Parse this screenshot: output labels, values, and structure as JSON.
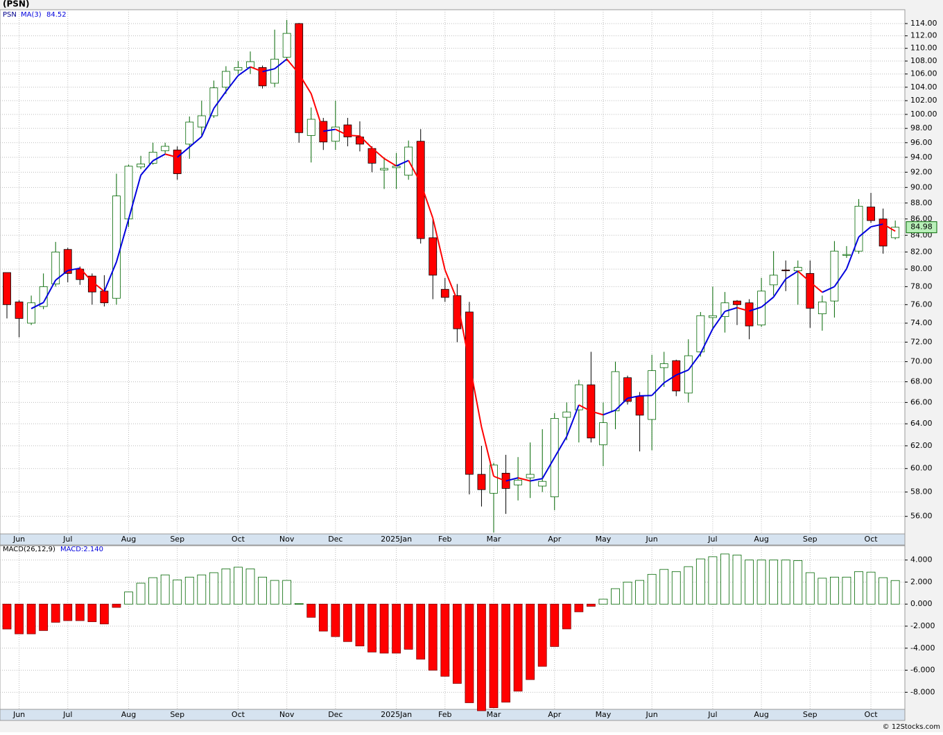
{
  "chart_data": [
    {
      "type": "candlestick",
      "title": "(PSN)",
      "symbol": "PSN",
      "ma_label": "MA(3)",
      "ma_last": 84.52,
      "source": "© 12Stocks.com",
      "log_scale": true,
      "grid": true,
      "up_color": "#006600",
      "down_color": "#ff0000",
      "ma_up_color": "#0000dd",
      "ma_down_color": "#ff0000",
      "categories": [
        null,
        "Jun",
        null,
        null,
        null,
        "Jul",
        null,
        null,
        null,
        null,
        "Aug",
        null,
        null,
        null,
        "Sep",
        null,
        null,
        null,
        null,
        "Oct",
        null,
        null,
        null,
        "Nov",
        null,
        null,
        null,
        "Dec",
        null,
        null,
        null,
        null,
        "2025Jan",
        null,
        null,
        null,
        "Feb",
        null,
        null,
        null,
        "Mar",
        null,
        null,
        null,
        null,
        "Apr",
        null,
        null,
        null,
        "May",
        null,
        null,
        null,
        "Jun",
        null,
        null,
        null,
        null,
        "Jul",
        null,
        null,
        null,
        "Aug",
        null,
        null,
        null,
        "Sep",
        null,
        null,
        null,
        null,
        "Oct",
        null,
        null
      ],
      "open": [
        79.6,
        76.3,
        74.0,
        75.8,
        78.3,
        82.3,
        80,
        79.2,
        77.5,
        76.7,
        86,
        92.7,
        93.2,
        94.9,
        95,
        95.8,
        98.2,
        99.8,
        104,
        106.6,
        107,
        107,
        104.6,
        108.6,
        114,
        97,
        99,
        96.2,
        98.5,
        96.8,
        95.2,
        92.3,
        92.6,
        91.6,
        96.2,
        83.7,
        77.7,
        77,
        75.2,
        59.5,
        57.9,
        59.6,
        58.6,
        59.2,
        58.5,
        57.6,
        64.6,
        65.3,
        67.7,
        62.1,
        65.2,
        68.4,
        66.6,
        64.4,
        69.4,
        70.1,
        66.9,
        71,
        74.6,
        74.7,
        76.4,
        76.2,
        73.8,
        78.2,
        79.9,
        79.8,
        79.5,
        75,
        76.4,
        81.6,
        82.1,
        87.5,
        86,
        83.7
      ],
      "high": [
        79.6,
        76.5,
        77,
        79.5,
        83.2,
        82.5,
        80.3,
        79.5,
        79.3,
        91.8,
        93,
        94.2,
        96,
        96,
        95.5,
        99.7,
        102,
        105,
        107.2,
        108,
        109.5,
        107.3,
        113,
        114.6,
        114.1,
        101,
        99.5,
        102,
        99.5,
        99,
        95.5,
        94,
        94.6,
        96.3,
        97.9,
        86,
        79,
        78.3,
        76.3,
        62,
        60.5,
        61.2,
        61,
        62.3,
        63.5,
        65,
        66,
        68.2,
        71,
        66,
        70,
        68.6,
        67,
        70.7,
        71,
        70.2,
        72.3,
        75.2,
        78,
        77.4,
        76.5,
        76.6,
        79,
        82.1,
        81,
        81,
        81,
        77,
        83.3,
        82.7,
        88.5,
        89.3,
        87.3,
        85.8
      ],
      "low": [
        74.5,
        72.5,
        73.8,
        75.5,
        78,
        78.5,
        78.2,
        76,
        75.8,
        76,
        85,
        92.4,
        93,
        94.5,
        91,
        93.8,
        97,
        99.5,
        103,
        106,
        106,
        103.8,
        104,
        108,
        96,
        93.3,
        95,
        95,
        95.5,
        94.8,
        92,
        89.8,
        89.8,
        91,
        83,
        76.6,
        76.3,
        72,
        57.8,
        56.8,
        54.7,
        56.2,
        57.3,
        57.5,
        58,
        56.5,
        62.5,
        62.3,
        62.3,
        60.2,
        63.5,
        65.8,
        61.5,
        61.6,
        67.5,
        66.6,
        66,
        70.5,
        73.4,
        73,
        73.8,
        72.3,
        73.6,
        77,
        77.5,
        76,
        73.5,
        73.2,
        74.6,
        81.3,
        81.8,
        85.5,
        81.8,
        83.5
      ],
      "close": [
        76,
        74.5,
        76.2,
        78,
        82,
        79.5,
        78.8,
        77.4,
        76.2,
        88.9,
        92.8,
        93.1,
        94.7,
        95.5,
        91.8,
        98.9,
        99.8,
        103.9,
        106.4,
        107,
        107.9,
        104.2,
        108.3,
        112.4,
        97.4,
        99.3,
        96.1,
        98.2,
        96.8,
        95.8,
        93.2,
        92.5,
        92.8,
        95.4,
        83.6,
        79.3,
        76.8,
        73.4,
        59.5,
        58.2,
        60.3,
        58.3,
        59,
        59.5,
        58.9,
        64.5,
        65.1,
        67.7,
        62.7,
        64.1,
        69,
        66.1,
        64.8,
        69.1,
        69.8,
        67.1,
        70.6,
        74.8,
        74.8,
        76.2,
        76,
        73.7,
        77.5,
        79.3,
        79.8,
        80.2,
        75.6,
        76.3,
        82.1,
        81.7,
        87.6,
        85.8,
        82.7,
        84.98
      ],
      "ylim": [
        54.6,
        116.3
      ],
      "yticks": [
        {
          "value": 56,
          "label": "56.00"
        },
        {
          "value": 58,
          "label": "58.00"
        },
        {
          "value": 60,
          "label": "60.00"
        },
        {
          "value": 62,
          "label": "62.00"
        },
        {
          "value": 64,
          "label": "64.00"
        },
        {
          "value": 66,
          "label": "66.00"
        },
        {
          "value": 68,
          "label": "68.00"
        },
        {
          "value": 70,
          "label": "70.00"
        },
        {
          "value": 72,
          "label": "72.00"
        },
        {
          "value": 74,
          "label": "74.00"
        },
        {
          "value": 76,
          "label": "76.00"
        },
        {
          "value": 78,
          "label": "78.00"
        },
        {
          "value": 80,
          "label": "80.00"
        },
        {
          "value": 82,
          "label": "82.00"
        },
        {
          "value": 84,
          "label": "84.00"
        },
        {
          "value": 86,
          "label": "86.00"
        },
        {
          "value": 88,
          "label": "88.00"
        },
        {
          "value": 90,
          "label": "90.00"
        },
        {
          "value": 92,
          "label": "92.00"
        },
        {
          "value": 94,
          "label": "94.00"
        },
        {
          "value": 96,
          "label": "96.00"
        },
        {
          "value": 98,
          "label": "98.00"
        },
        {
          "value": 100,
          "label": "100.00"
        },
        {
          "value": 102,
          "label": "102.00"
        },
        {
          "value": 104,
          "label": "104.00"
        },
        {
          "value": 106,
          "label": "106.00"
        },
        {
          "value": 108,
          "label": "108.00"
        },
        {
          "value": 110,
          "label": "110.00"
        },
        {
          "value": 112,
          "label": "112.00"
        },
        {
          "value": 114,
          "label": "114.00"
        }
      ]
    },
    {
      "type": "bar",
      "indicator": "MACD(26,12,9)",
      "reading": "MACD:2.140",
      "grid": true,
      "pos_color": "#006600",
      "neg_color": "#ff0000",
      "categories": [
        null,
        "Jun",
        null,
        null,
        null,
        "Jul",
        null,
        null,
        null,
        null,
        "Aug",
        null,
        null,
        null,
        "Sep",
        null,
        null,
        null,
        null,
        "Oct",
        null,
        null,
        null,
        "Nov",
        null,
        null,
        null,
        "Dec",
        null,
        null,
        null,
        null,
        "2025Jan",
        null,
        null,
        null,
        "Feb",
        null,
        null,
        null,
        "Mar",
        null,
        null,
        null,
        null,
        "Apr",
        null,
        null,
        null,
        "May",
        null,
        null,
        null,
        "Jun",
        null,
        null,
        null,
        null,
        "Jul",
        null,
        null,
        null,
        "Aug",
        null,
        null,
        null,
        "Sep",
        null,
        null,
        null,
        null,
        "Oct",
        null,
        null
      ],
      "values": [
        -2.26,
        -2.7,
        -2.7,
        -2.4,
        -1.65,
        -1.5,
        -1.5,
        -1.6,
        -1.8,
        -0.3,
        1.1,
        1.9,
        2.4,
        2.65,
        2.2,
        2.45,
        2.65,
        2.85,
        3.2,
        3.35,
        3.2,
        2.45,
        2.15,
        2.15,
        0.05,
        -1.2,
        -2.45,
        -2.95,
        -3.4,
        -3.8,
        -4.35,
        -4.45,
        -4.45,
        -4.1,
        -5,
        -6,
        -6.55,
        -7.2,
        -8.95,
        -9.7,
        -9.4,
        -8.9,
        -7.9,
        -6.85,
        -5.65,
        -3.85,
        -2.25,
        -0.7,
        -0.2,
        0.45,
        1.4,
        2.0,
        2.15,
        2.7,
        3.15,
        2.95,
        3.4,
        4.1,
        4.3,
        4.55,
        4.45,
        4.0,
        4.0,
        4.0,
        4.0,
        3.95,
        2.85,
        2.35,
        2.45,
        2.45,
        2.95,
        2.9,
        2.4,
        2.14
      ],
      "ylim": [
        -9.55,
        5.3
      ],
      "yticks": [
        {
          "value": -8,
          "label": "-8.000"
        },
        {
          "value": -6,
          "label": "-6.000"
        },
        {
          "value": -4,
          "label": "-4.000"
        },
        {
          "value": -2,
          "label": "-2.000"
        },
        {
          "value": 0,
          "label": "0.000"
        },
        {
          "value": 2,
          "label": "2.000"
        },
        {
          "value": 4,
          "label": "4.000"
        }
      ]
    }
  ]
}
